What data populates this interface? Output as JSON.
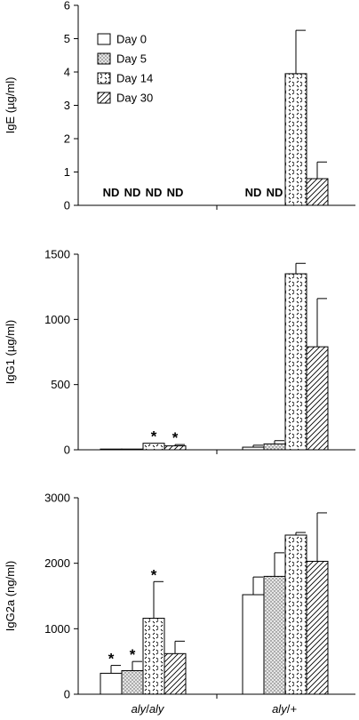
{
  "legend": [
    "Day 0",
    "Day 5",
    "Day 14",
    "Day 30"
  ],
  "fills": [
    "white",
    "dots",
    "dashes",
    "hatch"
  ],
  "group_labels": [
    {
      "main": "aly",
      "sep": "/",
      "tail": "aly"
    },
    {
      "main": "aly",
      "sep": "/",
      "tail": "+"
    }
  ],
  "chart_data": [
    {
      "type": "bar",
      "ylabel": "IgE (µg/ml)",
      "ylim": [
        0,
        6
      ],
      "yticks": [
        "0",
        "1",
        "2",
        "3",
        "4",
        "5",
        "6"
      ],
      "categories": [
        "aly/aly",
        "aly/+"
      ],
      "series": [
        {
          "name": "Day 0",
          "values": [
            null,
            null
          ],
          "errors": [
            null,
            null
          ]
        },
        {
          "name": "Day 5",
          "values": [
            null,
            null
          ],
          "errors": [
            null,
            null
          ]
        },
        {
          "name": "Day 14",
          "values": [
            null,
            3.95
          ],
          "errors": [
            null,
            1.3
          ]
        },
        {
          "name": "Day 30",
          "values": [
            null,
            0.8
          ],
          "errors": [
            null,
            0.5
          ]
        }
      ],
      "annotations": {
        "nd": "ND",
        "nd_marks": [
          [
            0,
            0
          ],
          [
            0,
            1
          ],
          [
            0,
            2
          ],
          [
            0,
            3
          ],
          [
            1,
            0
          ],
          [
            1,
            1
          ]
        ]
      },
      "legend": "top-left"
    },
    {
      "type": "bar",
      "ylabel": "IgG1 (µg/ml)",
      "ylim": [
        0,
        1500
      ],
      "yticks": [
        "0",
        "500",
        "1000",
        "1500"
      ],
      "categories": [
        "aly/aly",
        "aly/+"
      ],
      "series": [
        {
          "name": "Day 0",
          "values": [
            3,
            20
          ],
          "errors": [
            null,
            15
          ]
        },
        {
          "name": "Day 5",
          "values": [
            3,
            45
          ],
          "errors": [
            null,
            25
          ]
        },
        {
          "name": "Day 14",
          "values": [
            50,
            1350
          ],
          "errors": [
            null,
            80
          ]
        },
        {
          "name": "Day 30",
          "values": [
            30,
            790
          ],
          "errors": [
            10,
            370
          ]
        }
      ],
      "annotations": {
        "star": "*",
        "star_marks": [
          [
            0,
            2
          ],
          [
            0,
            3
          ]
        ]
      }
    },
    {
      "type": "bar",
      "ylabel": "IgG2a (ng/ml)",
      "ylim": [
        0,
        3000
      ],
      "yticks": [
        "0",
        "1000",
        "2000",
        "3000"
      ],
      "categories": [
        "aly/aly",
        "aly/+"
      ],
      "series": [
        {
          "name": "Day 0",
          "values": [
            320,
            1520
          ],
          "errors": [
            120,
            270
          ]
        },
        {
          "name": "Day 5",
          "values": [
            360,
            1800
          ],
          "errors": [
            140,
            360
          ]
        },
        {
          "name": "Day 14",
          "values": [
            1160,
            2430
          ],
          "errors": [
            560,
            40
          ]
        },
        {
          "name": "Day 30",
          "values": [
            620,
            2030
          ],
          "errors": [
            190,
            740
          ]
        }
      ],
      "annotations": {
        "star": "*",
        "star_marks": [
          [
            0,
            0
          ],
          [
            0,
            1
          ],
          [
            0,
            2
          ]
        ]
      }
    }
  ]
}
